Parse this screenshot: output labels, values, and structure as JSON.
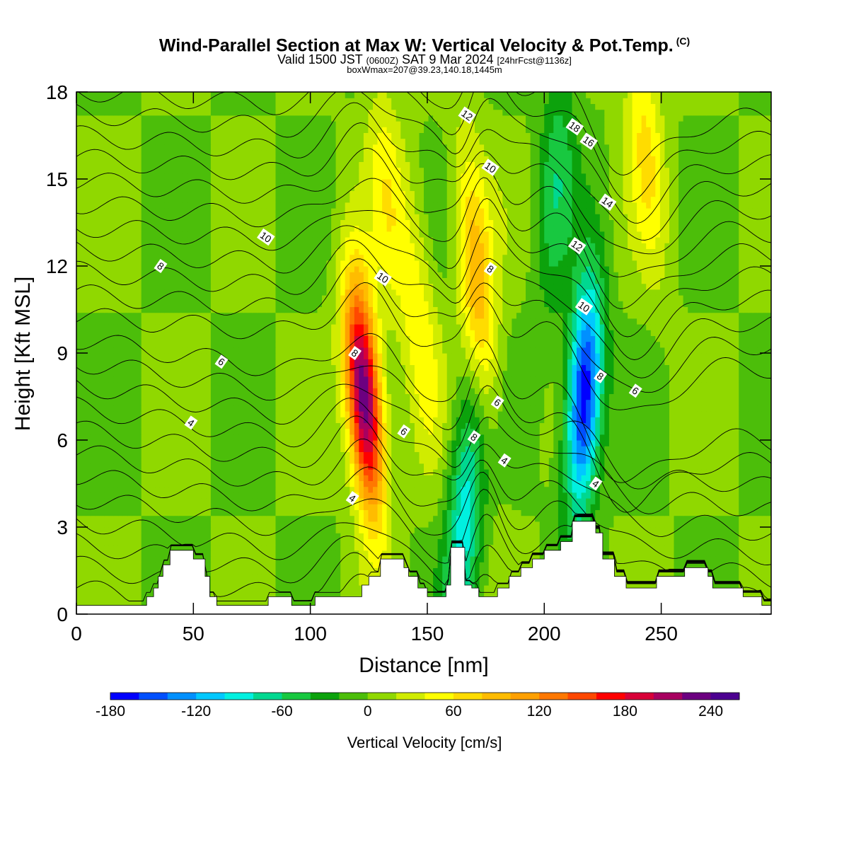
{
  "header": {
    "title": "Wind-Parallel Section at Max W: Vertical Velocity & Pot.Temp.",
    "title_mark": "(C)",
    "subtitle_a": "Valid 1500 JST",
    "subtitle_b": "(0600Z)",
    "subtitle_c": "SAT 9 Mar 2024",
    "subtitle_d": "[24hrFcst@1136z]",
    "subtitle2": "boxWmax=207@39.23,140.18,1445m"
  },
  "chart_data": {
    "type": "heatmap",
    "xlabel": "Distance [nm]",
    "ylabel": "Height [Kft MSL]",
    "xlim": [
      0,
      297
    ],
    "ylim": [
      0,
      18
    ],
    "x_ticks": [
      0,
      50,
      100,
      150,
      200,
      250
    ],
    "y_ticks": [
      0,
      3,
      6,
      9,
      12,
      15,
      18
    ],
    "background_value_cm_s": 0,
    "vertical_velocity_features": [
      {
        "name": "updraft",
        "x": 123,
        "y": 7.5,
        "peak_cm_s": 250
      },
      {
        "name": "updraft",
        "x": 171,
        "y": 11.5,
        "peak_cm_s": 100
      },
      {
        "name": "updraft",
        "x": 147,
        "y": 10,
        "peak_cm_s": 50
      },
      {
        "name": "updraft",
        "x": 133,
        "y": 14.5,
        "peak_cm_s": 45
      },
      {
        "name": "updraft",
        "x": 243,
        "y": 16.5,
        "peak_cm_s": 60
      },
      {
        "name": "downdraft",
        "x": 217,
        "y": 7.5,
        "peak_cm_s": -185
      },
      {
        "name": "downdraft",
        "x": 166,
        "y": 3.5,
        "peak_cm_s": -90
      },
      {
        "name": "downdraft",
        "x": 205,
        "y": 15,
        "peak_cm_s": -50
      }
    ],
    "pot_temp_contour_labels": [
      {
        "text": "4",
        "x": 49,
        "y": 6.6
      },
      {
        "text": "6",
        "x": 62,
        "y": 8.7
      },
      {
        "text": "8",
        "x": 36,
        "y": 12
      },
      {
        "text": "10",
        "x": 81,
        "y": 13
      },
      {
        "text": "4",
        "x": 118,
        "y": 4
      },
      {
        "text": "6",
        "x": 140,
        "y": 6.3
      },
      {
        "text": "8",
        "x": 119,
        "y": 9
      },
      {
        "text": "10",
        "x": 131,
        "y": 11.6
      },
      {
        "text": "8",
        "x": 170,
        "y": 6.1
      },
      {
        "text": "6",
        "x": 180,
        "y": 7.3
      },
      {
        "text": "4",
        "x": 183,
        "y": 5.3
      },
      {
        "text": "8",
        "x": 177,
        "y": 11.9
      },
      {
        "text": "12",
        "x": 167,
        "y": 17.2
      },
      {
        "text": "10",
        "x": 177,
        "y": 15.4
      },
      {
        "text": "18",
        "x": 213,
        "y": 16.8
      },
      {
        "text": "16",
        "x": 219,
        "y": 16.3
      },
      {
        "text": "14",
        "x": 227,
        "y": 14.2
      },
      {
        "text": "12",
        "x": 214,
        "y": 12.7
      },
      {
        "text": "10",
        "x": 217,
        "y": 10.6
      },
      {
        "text": "8",
        "x": 224,
        "y": 8.2
      },
      {
        "text": "6",
        "x": 239,
        "y": 7.7
      },
      {
        "text": "4",
        "x": 222,
        "y": 4.5
      }
    ],
    "terrain_kft": [
      [
        0,
        0.3
      ],
      [
        30,
        0.3
      ],
      [
        30,
        0.6
      ],
      [
        33,
        0.6
      ],
      [
        33,
        0.9
      ],
      [
        35,
        0.9
      ],
      [
        35,
        1.3
      ],
      [
        37,
        1.3
      ],
      [
        37,
        1.7
      ],
      [
        40,
        1.7
      ],
      [
        40,
        2.2
      ],
      [
        50,
        2.2
      ],
      [
        50,
        1.9
      ],
      [
        55,
        1.9
      ],
      [
        55,
        1.3
      ],
      [
        57,
        1.3
      ],
      [
        57,
        0.6
      ],
      [
        60,
        0.6
      ],
      [
        60,
        0.3
      ],
      [
        82,
        0.3
      ],
      [
        82,
        0.6
      ],
      [
        92,
        0.6
      ],
      [
        92,
        0.3
      ],
      [
        102,
        0.3
      ],
      [
        102,
        0.6
      ],
      [
        122,
        0.6
      ],
      [
        122,
        1.0
      ],
      [
        125,
        1.0
      ],
      [
        125,
        1.3
      ],
      [
        130,
        1.3
      ],
      [
        130,
        1.9
      ],
      [
        140,
        1.9
      ],
      [
        140,
        1.6
      ],
      [
        142,
        1.6
      ],
      [
        142,
        1.3
      ],
      [
        146,
        1.3
      ],
      [
        146,
        0.9
      ],
      [
        150,
        0.9
      ],
      [
        150,
        0.6
      ],
      [
        158,
        0.6
      ],
      [
        158,
        1.0
      ],
      [
        160,
        1.0
      ],
      [
        160,
        2.3
      ],
      [
        166,
        2.3
      ],
      [
        166,
        1.0
      ],
      [
        169,
        1.0
      ],
      [
        169,
        0.9
      ],
      [
        172,
        0.9
      ],
      [
        172,
        0.6
      ],
      [
        180,
        0.6
      ],
      [
        180,
        0.9
      ],
      [
        185,
        0.9
      ],
      [
        185,
        1.3
      ],
      [
        190,
        1.3
      ],
      [
        190,
        1.6
      ],
      [
        195,
        1.6
      ],
      [
        195,
        1.9
      ],
      [
        200,
        1.9
      ],
      [
        200,
        2.2
      ],
      [
        207,
        2.2
      ],
      [
        207,
        2.5
      ],
      [
        212,
        2.5
      ],
      [
        212,
        3.2
      ],
      [
        222,
        3.2
      ],
      [
        222,
        2.8
      ],
      [
        225,
        2.8
      ],
      [
        225,
        1.9
      ],
      [
        230,
        1.9
      ],
      [
        230,
        1.3
      ],
      [
        235,
        1.3
      ],
      [
        235,
        0.9
      ],
      [
        248,
        0.9
      ],
      [
        248,
        1.3
      ],
      [
        260,
        1.3
      ],
      [
        260,
        1.6
      ],
      [
        270,
        1.6
      ],
      [
        270,
        1.3
      ],
      [
        272,
        1.3
      ],
      [
        272,
        0.9
      ],
      [
        285,
        0.9
      ],
      [
        285,
        0.6
      ],
      [
        293,
        0.6
      ],
      [
        293,
        0.3
      ],
      [
        297,
        0.3
      ]
    ]
  },
  "colorbar": {
    "title": "Vertical Velocity [cm/s]",
    "tick_labels": [
      "-180",
      "-120",
      "-60",
      "0",
      "60",
      "120",
      "180",
      "240"
    ],
    "tick_values": [
      -180,
      -120,
      -60,
      0,
      60,
      120,
      180,
      240
    ],
    "min": -180,
    "max": 260,
    "step": 20,
    "colors": [
      "#0000ff",
      "#0050ff",
      "#0090ff",
      "#00c8ff",
      "#00f0e0",
      "#00d890",
      "#18c840",
      "#0ca20c",
      "#4cbe0a",
      "#90d800",
      "#d0ec00",
      "#ffff00",
      "#ffdc00",
      "#ffbc00",
      "#ffa000",
      "#ff7800",
      "#ff4800",
      "#ff0000",
      "#d80038",
      "#a80060",
      "#6c0080",
      "#4c0090"
    ]
  }
}
